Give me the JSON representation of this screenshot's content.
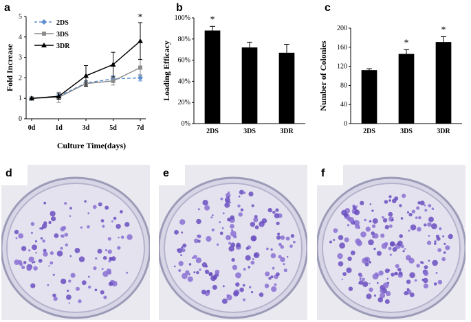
{
  "panels": {
    "a": "a",
    "b": "b",
    "c": "c",
    "d": "d",
    "e": "e",
    "f": "f"
  },
  "chart_data": [
    {
      "id": "a",
      "type": "line",
      "ylabel": "Fold Increase",
      "xlabel": "Culture Time(days)",
      "x": [
        "0d",
        "1d",
        "3d",
        "5d",
        "7d"
      ],
      "yticks": [
        "0",
        "1",
        "2",
        "3",
        "4",
        "5"
      ],
      "ylim": [
        0,
        5
      ],
      "grid": false,
      "legend_position": "top-left",
      "series": [
        {
          "name": "2DS",
          "values": [
            1.0,
            1.1,
            1.75,
            1.95,
            2.0
          ],
          "err": [
            0,
            0.1,
            0.1,
            0.15,
            0.15
          ],
          "color": "#5b8fd0",
          "marker": "diamond",
          "dash": true
        },
        {
          "name": "3DS",
          "values": [
            1.0,
            1.05,
            1.72,
            1.85,
            2.5
          ],
          "err": [
            0,
            0.25,
            0.15,
            0.2,
            0.4
          ],
          "color": "#8c8c8c",
          "marker": "square",
          "dash": false
        },
        {
          "name": "3DR",
          "values": [
            1.0,
            1.1,
            2.1,
            2.65,
            3.8
          ],
          "err": [
            0,
            0.15,
            0.5,
            0.6,
            0.9
          ],
          "color": "#000000",
          "marker": "triangle",
          "dash": false
        }
      ],
      "annotations": [
        {
          "x": "7d",
          "text": "*"
        }
      ]
    },
    {
      "id": "b",
      "type": "bar",
      "ylabel": "Loading Efficacy",
      "categories": [
        "2DS",
        "3DS",
        "3DR"
      ],
      "values": [
        88,
        72,
        67
      ],
      "err": [
        4,
        5,
        8
      ],
      "yticks": [
        "0%",
        "20%",
        "40%",
        "60%",
        "80%",
        "100%"
      ],
      "ylim": [
        0,
        100
      ],
      "color": "#000000",
      "annotations": [
        {
          "category": "2DS",
          "text": "*"
        }
      ]
    },
    {
      "id": "c",
      "type": "bar",
      "ylabel": "Number of Colonies",
      "categories": [
        "2DS",
        "3DS",
        "3DR"
      ],
      "values": [
        112,
        146,
        171
      ],
      "err": [
        3,
        9,
        11
      ],
      "yticks": [
        "0",
        "40",
        "80",
        "120",
        "160",
        "200"
      ],
      "ylim": [
        0,
        200
      ],
      "color": "#000000",
      "annotations": [
        {
          "category": "3DS",
          "text": "*"
        },
        {
          "category": "3DR",
          "text": "*"
        }
      ]
    }
  ],
  "photos": [
    {
      "id": "d",
      "colonies": 110,
      "seed": 7
    },
    {
      "id": "e",
      "colonies": 150,
      "seed": 13
    },
    {
      "id": "f",
      "colonies": 175,
      "seed": 29
    }
  ]
}
